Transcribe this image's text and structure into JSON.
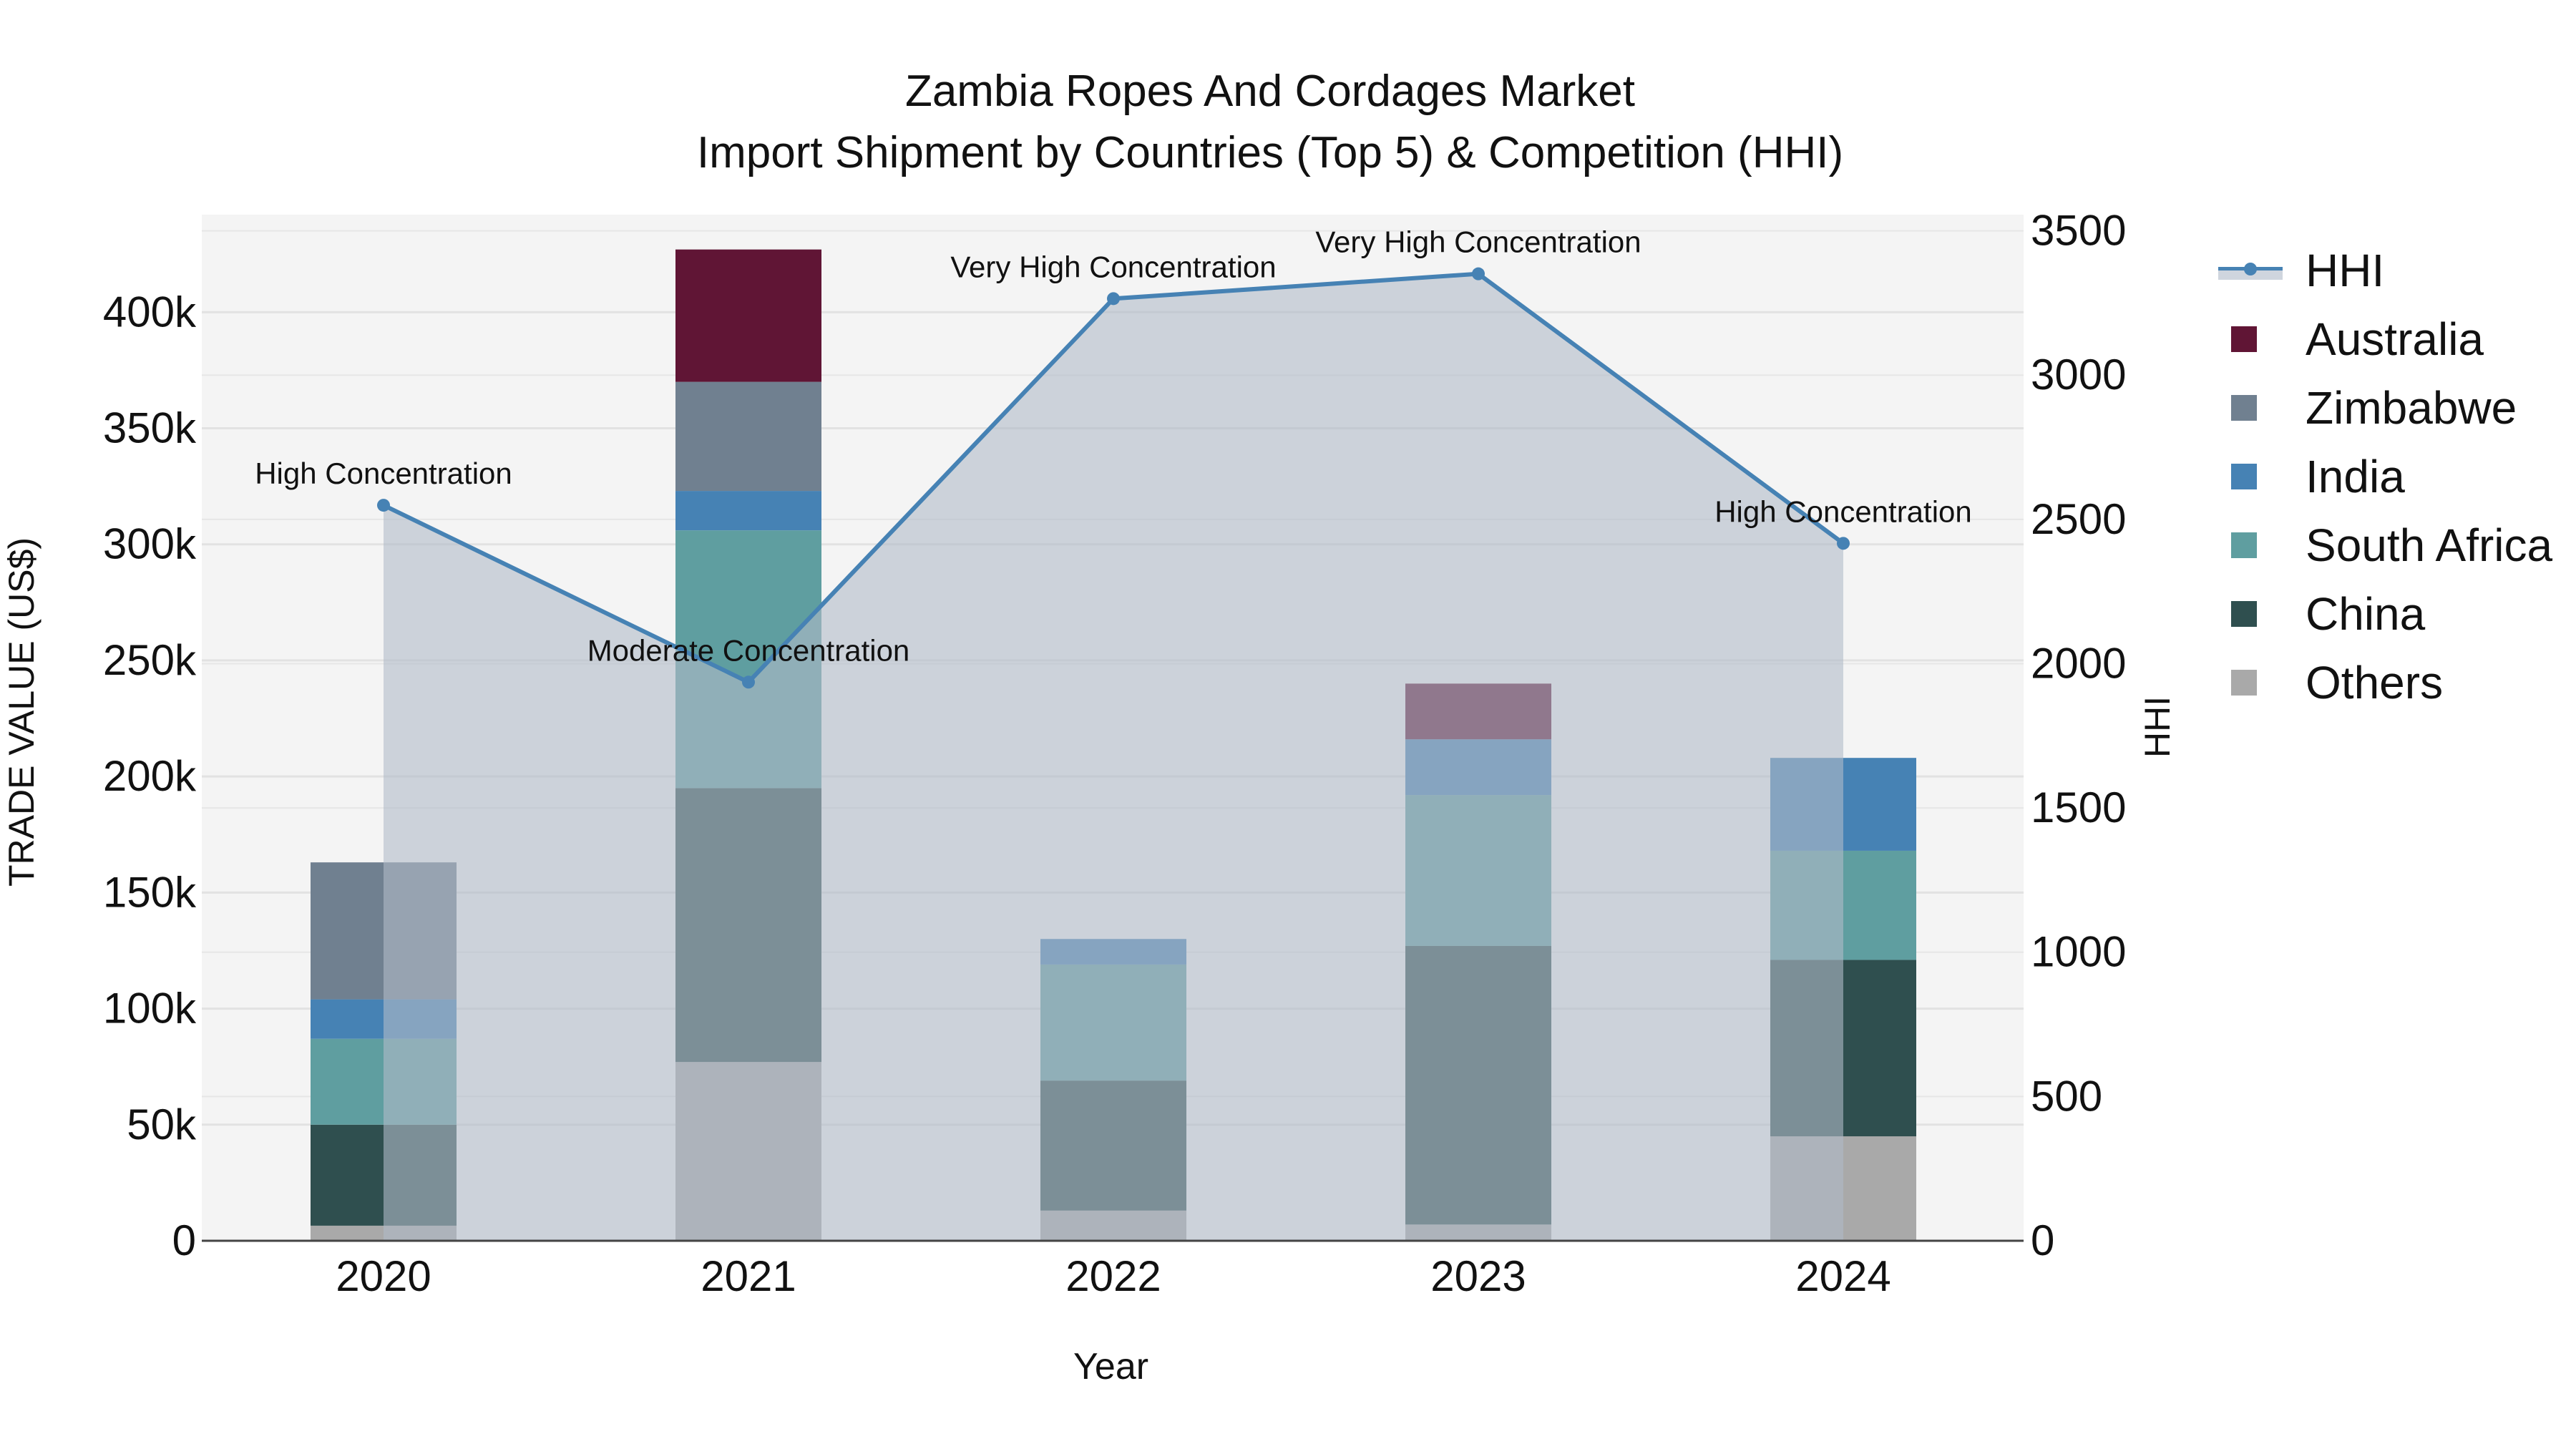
{
  "title": {
    "line1": "Zambia Ropes And Cordages Market",
    "line2": "Import Shipment by Countries (Top 5) & Competition (HHI)"
  },
  "axes": {
    "xlabel": "Year",
    "ylabel_left": "TRADE VALUE (US$)",
    "ylabel_right": "HHI",
    "left_ticks": [
      "0",
      "50k",
      "100k",
      "150k",
      "200k",
      "250k",
      "300k",
      "350k",
      "400k"
    ],
    "right_ticks": [
      "0",
      "500",
      "1000",
      "1500",
      "2000",
      "2500",
      "3000",
      "3500"
    ]
  },
  "legend": [
    {
      "label": "HHI",
      "color": "#4682b4",
      "type": "line"
    },
    {
      "label": "Australia",
      "color": "#601535",
      "type": "bar"
    },
    {
      "label": "Zimbabwe",
      "color": "#708090",
      "type": "bar"
    },
    {
      "label": "India",
      "color": "#4682b4",
      "type": "bar"
    },
    {
      "label": "South Africa",
      "color": "#5f9ea0",
      "type": "bar"
    },
    {
      "label": "China",
      "color": "#2f4f4f",
      "type": "bar"
    },
    {
      "label": "Others",
      "color": "#a9a9a9",
      "type": "bar"
    }
  ],
  "chart_data": {
    "type": "bar",
    "stacked": true,
    "title": "Zambia Ropes And Cordages Market — Import Shipment by Countries (Top 5) & Competition (HHI)",
    "xlabel": "Year",
    "ylabel": "TRADE VALUE (US$)",
    "y2label": "HHI",
    "categories": [
      "2020",
      "2021",
      "2022",
      "2023",
      "2024"
    ],
    "ylim": [
      0,
      442000
    ],
    "y2lim": [
      0,
      3556
    ],
    "series": [
      {
        "name": "Others",
        "color": "#a9a9a9",
        "values": [
          6500,
          77000,
          13000,
          7000,
          45000
        ]
      },
      {
        "name": "China",
        "color": "#2f4f4f",
        "values": [
          43500,
          118000,
          56000,
          120000,
          76000
        ]
      },
      {
        "name": "South Africa",
        "color": "#5f9ea0",
        "values": [
          37000,
          111000,
          50000,
          65000,
          47000
        ]
      },
      {
        "name": "India",
        "color": "#4682b4",
        "values": [
          17000,
          17000,
          11000,
          24000,
          40000
        ]
      },
      {
        "name": "Zimbabwe",
        "color": "#708090",
        "values": [
          59000,
          47000,
          0,
          0,
          0
        ]
      },
      {
        "name": "Australia",
        "color": "#601535",
        "values": [
          0,
          57000,
          0,
          24000,
          0
        ]
      }
    ],
    "line_series": {
      "name": "HHI",
      "axis": "right",
      "color": "#4682b4",
      "values": [
        2549,
        1936,
        3265,
        3351,
        2417
      ],
      "annotations": [
        "High Concentration",
        "Moderate Concentration",
        "Very High Concentration",
        "Very High Concentration",
        "High Concentration"
      ]
    },
    "grid": true,
    "legend_position": "right"
  }
}
